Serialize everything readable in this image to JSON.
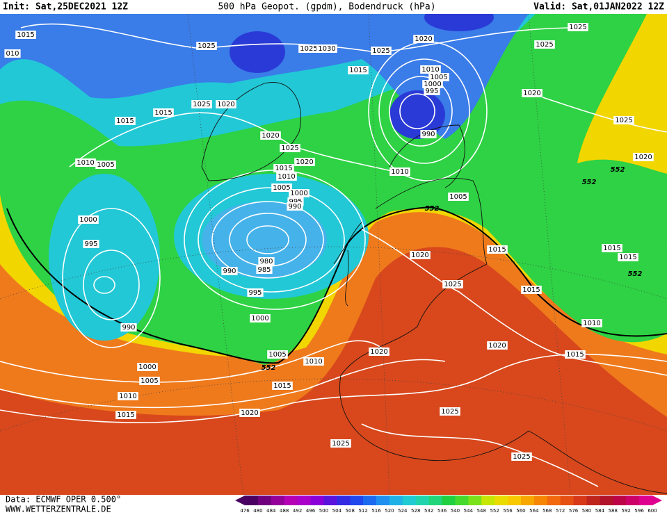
{
  "header": {
    "init": "Init: Sat,25DEC2021 12Z",
    "title": "500 hPa Geopot. (gpdm), Bodendruck (hPa)",
    "valid": "Valid: Sat,01JAN2022 12Z"
  },
  "isobar_labels": [
    "1015",
    "010",
    "1025",
    "1025",
    "1030",
    "1025",
    "1020",
    "1025",
    "1025",
    "1015",
    "1010",
    "1005",
    "1000",
    "995",
    "1020",
    "1015",
    "1025",
    "1020",
    "1015",
    "990",
    "1025",
    "1020",
    "1025",
    "1020",
    "1015",
    "1010",
    "1005",
    "1000",
    "995",
    "990",
    "1010",
    "1005",
    "1010",
    "552",
    "552",
    "1020",
    "1005",
    "552",
    "1000",
    "995",
    "1015",
    "1020",
    "980",
    "985",
    "990",
    "1015",
    "1015",
    "552",
    "1025",
    "1015",
    "995",
    "990",
    "1000",
    "1010",
    "1020",
    "1005",
    "1020",
    "1015",
    "1010",
    "552",
    "1000",
    "1005",
    "1015",
    "1010",
    "1015",
    "1020",
    "1025",
    "1025",
    "1025"
  ],
  "colorbar": {
    "labels": [
      476,
      480,
      484,
      488,
      492,
      496,
      500,
      504,
      508,
      512,
      516,
      520,
      524,
      528,
      532,
      536,
      540,
      544,
      548,
      552,
      556,
      560,
      564,
      568,
      572,
      576,
      580,
      584,
      588,
      592,
      596,
      600
    ]
  },
  "footer": {
    "source": "Data: ECMWF OPER 0.500°",
    "site": "WWW.WETTERZENTRALE.DE"
  }
}
